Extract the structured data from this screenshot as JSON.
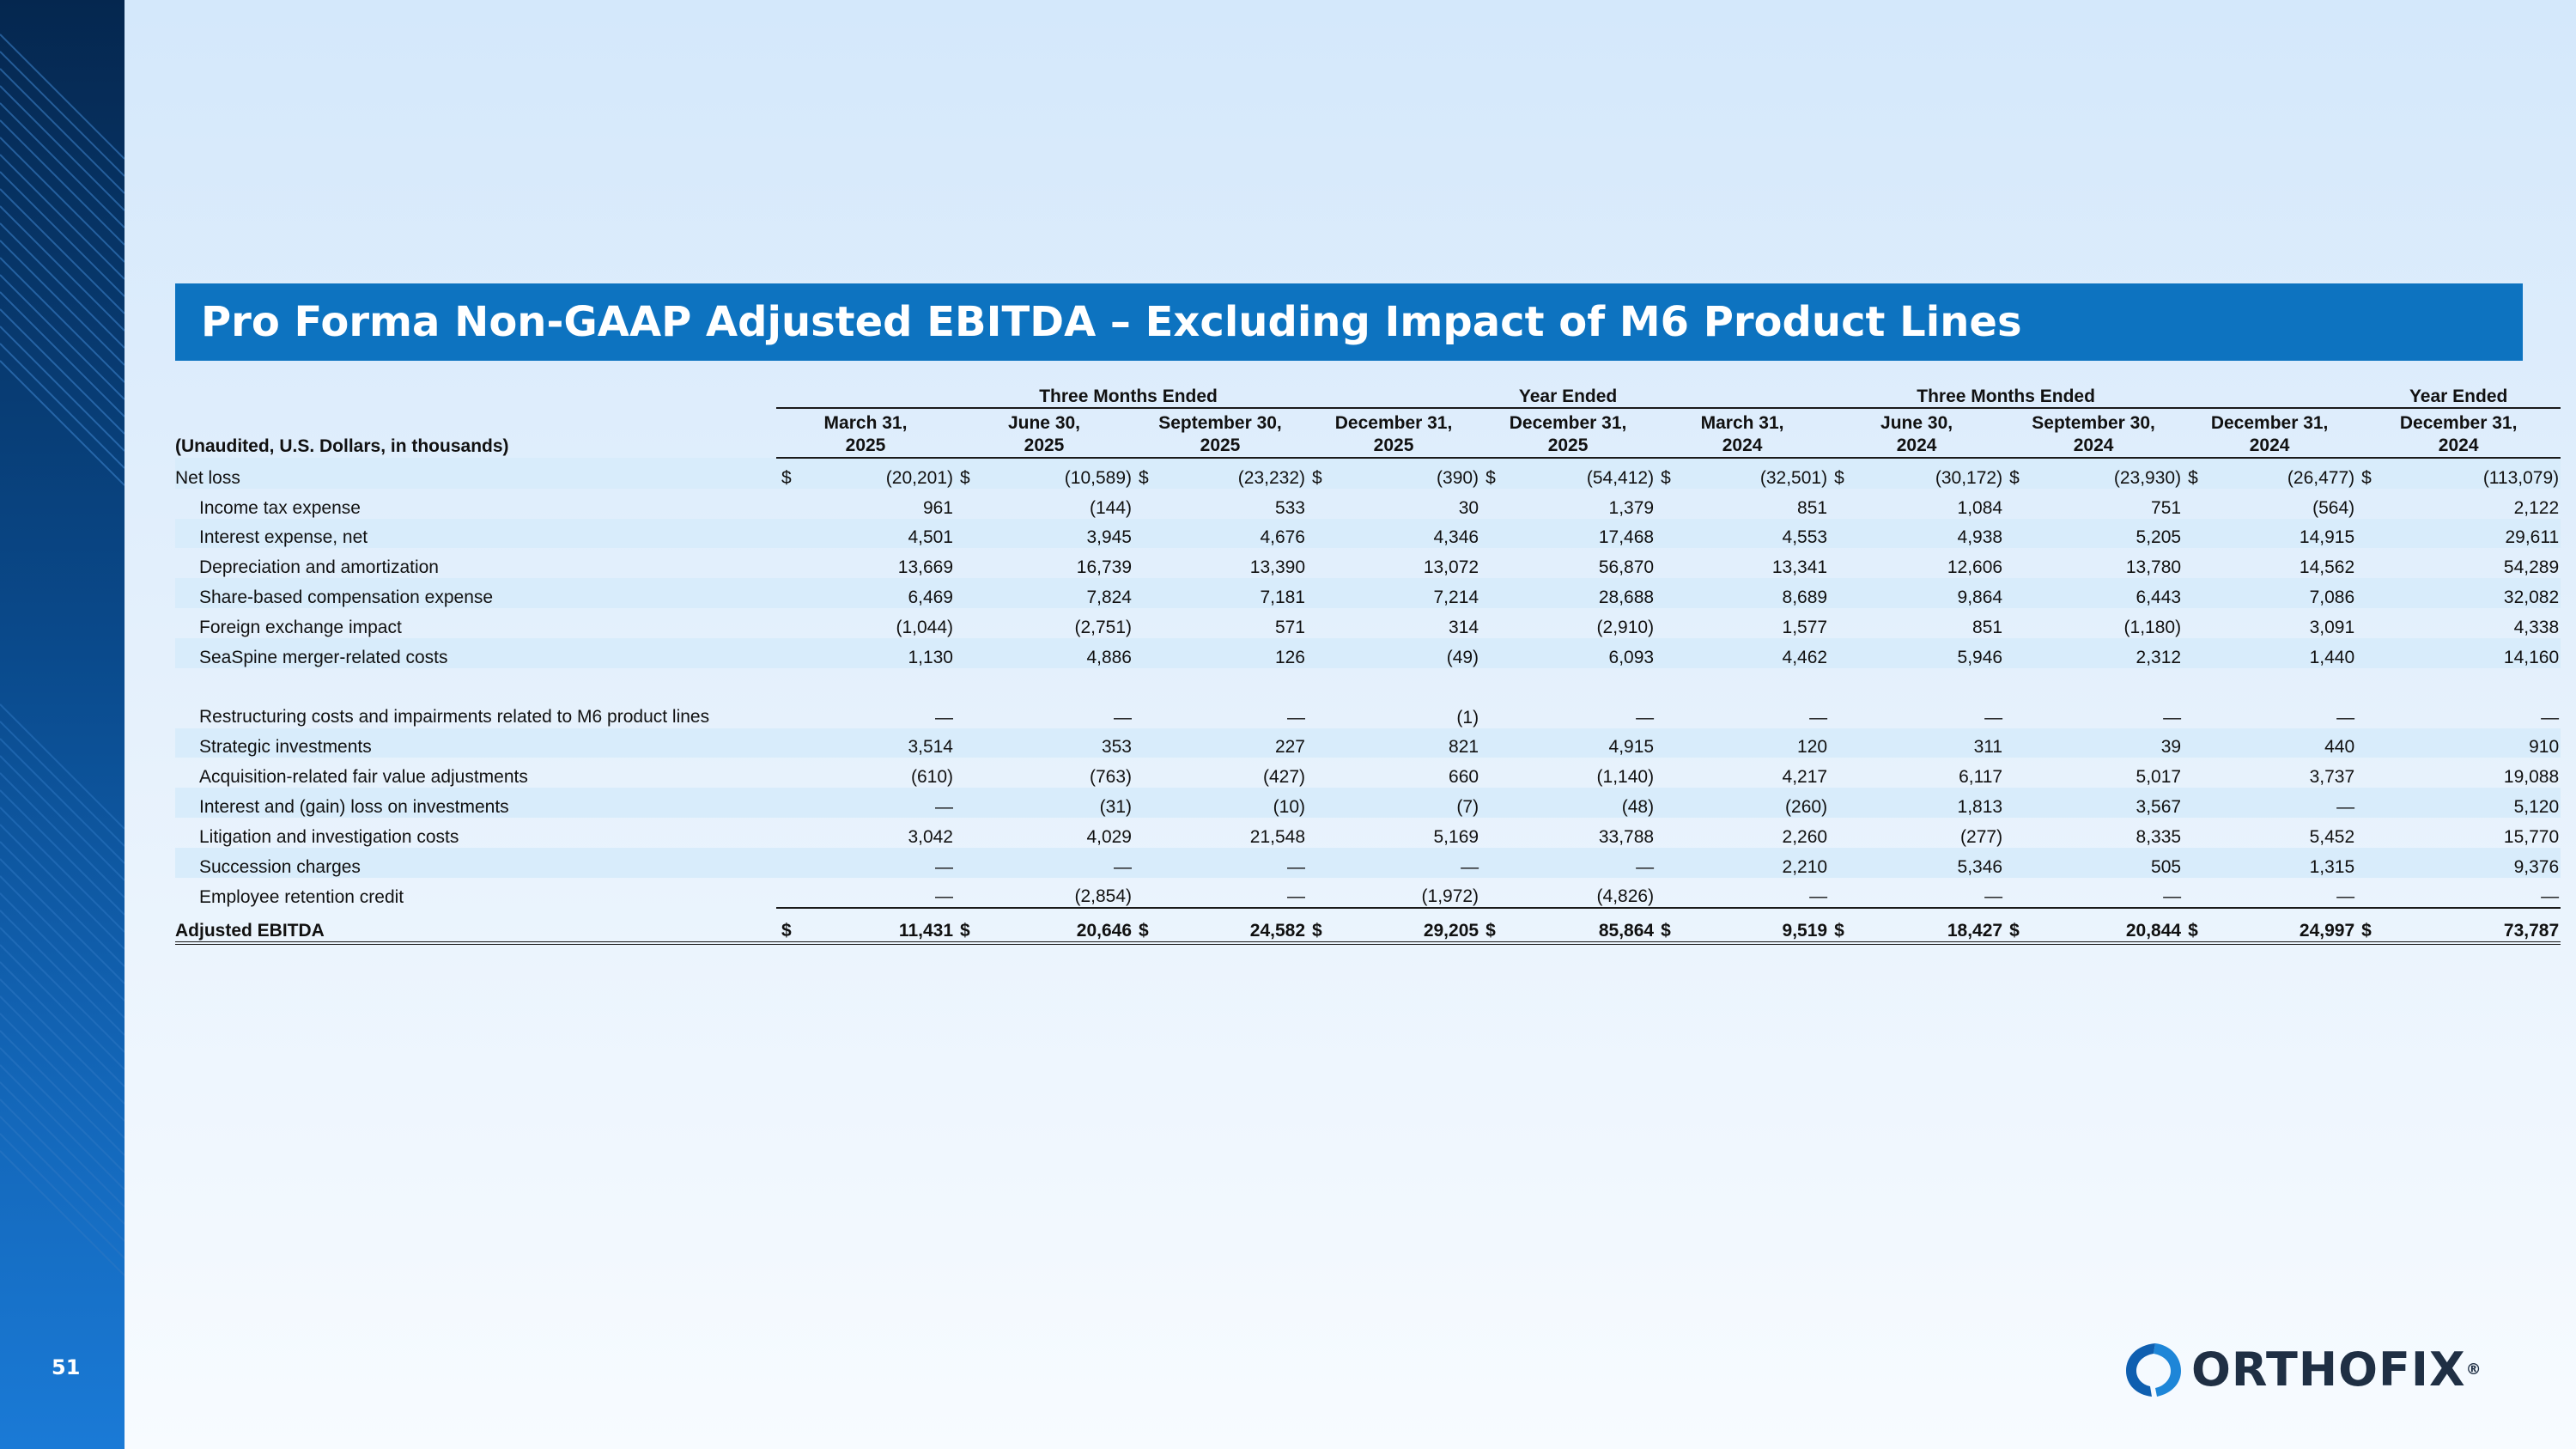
{
  "slide": {
    "page_number": "51",
    "title": "Pro Forma Non-GAAP Adjusted EBITDA – Excluding Impact of M6 Product Lines",
    "logo_text": "ORTHOFIX",
    "logo_mark": "®"
  },
  "table": {
    "group_headers": [
      "Three Months Ended",
      "Year Ended",
      "Three Months Ended",
      "Year Ended"
    ],
    "unit_label": "(Unaudited, U.S. Dollars, in thousands)",
    "columns": [
      {
        "line1": "March 31,",
        "line2": "2025"
      },
      {
        "line1": "June 30,",
        "line2": "2025"
      },
      {
        "line1": "September 30,",
        "line2": "2025"
      },
      {
        "line1": "December 31,",
        "line2": "2025"
      },
      {
        "line1": "December 31,",
        "line2": "2025"
      },
      {
        "line1": "March 31,",
        "line2": "2024"
      },
      {
        "line1": "June 30,",
        "line2": "2024"
      },
      {
        "line1": "September 30,",
        "line2": "2024"
      },
      {
        "line1": "December 31,",
        "line2": "2024"
      },
      {
        "line1": "December 31,",
        "line2": "2024"
      }
    ],
    "currency_symbol": "$",
    "rows": [
      {
        "label": "Net loss",
        "values": [
          "(20,201)",
          "(10,589)",
          "(23,232)",
          "(390)",
          "(54,412)",
          "(32,501)",
          "(30,172)",
          "(23,930)",
          "(26,477)",
          "(113,079)"
        ]
      },
      {
        "label": "Income tax expense",
        "values": [
          "961",
          "(144)",
          "533",
          "30",
          "1,379",
          "851",
          "1,084",
          "751",
          "(564)",
          "2,122"
        ]
      },
      {
        "label": "Interest expense, net",
        "values": [
          "4,501",
          "3,945",
          "4,676",
          "4,346",
          "17,468",
          "4,553",
          "4,938",
          "5,205",
          "14,915",
          "29,611"
        ]
      },
      {
        "label": "Depreciation and amortization",
        "values": [
          "13,669",
          "16,739",
          "13,390",
          "13,072",
          "56,870",
          "13,341",
          "12,606",
          "13,780",
          "14,562",
          "54,289"
        ]
      },
      {
        "label": "Share-based compensation expense",
        "values": [
          "6,469",
          "7,824",
          "7,181",
          "7,214",
          "28,688",
          "8,689",
          "9,864",
          "6,443",
          "7,086",
          "32,082"
        ]
      },
      {
        "label": "Foreign exchange impact",
        "values": [
          "(1,044)",
          "(2,751)",
          "571",
          "314",
          "(2,910)",
          "1,577",
          "851",
          "(1,180)",
          "3,091",
          "4,338"
        ]
      },
      {
        "label": "SeaSpine merger-related costs",
        "values": [
          "1,130",
          "4,886",
          "126",
          "(49)",
          "6,093",
          "4,462",
          "5,946",
          "2,312",
          "1,440",
          "14,160"
        ]
      },
      {
        "label": "Restructuring costs and impairments related to M6 product lines",
        "values": [
          "—",
          "—",
          "—",
          "(1)",
          "—",
          "—",
          "—",
          "—",
          "—",
          "—"
        ]
      },
      {
        "label": "Strategic investments",
        "values": [
          "3,514",
          "353",
          "227",
          "821",
          "4,915",
          "120",
          "311",
          "39",
          "440",
          "910"
        ]
      },
      {
        "label": "Acquisition-related fair value adjustments",
        "values": [
          "(610)",
          "(763)",
          "(427)",
          "660",
          "(1,140)",
          "4,217",
          "6,117",
          "5,017",
          "3,737",
          "19,088"
        ]
      },
      {
        "label": "Interest and (gain) loss on investments",
        "values": [
          "—",
          "(31)",
          "(10)",
          "(7)",
          "(48)",
          "(260)",
          "1,813",
          "3,567",
          "—",
          "5,120"
        ]
      },
      {
        "label": "Litigation and investigation costs",
        "values": [
          "3,042",
          "4,029",
          "21,548",
          "5,169",
          "33,788",
          "2,260",
          "(277)",
          "8,335",
          "5,452",
          "15,770"
        ]
      },
      {
        "label": "Succession charges",
        "values": [
          "—",
          "—",
          "—",
          "—",
          "—",
          "2,210",
          "5,346",
          "505",
          "1,315",
          "9,376"
        ]
      },
      {
        "label": "Employee retention credit",
        "values": [
          "—",
          "(2,854)",
          "—",
          "(1,972)",
          "(4,826)",
          "—",
          "—",
          "—",
          "—",
          "—"
        ]
      }
    ],
    "total": {
      "label": "Adjusted EBITDA",
      "values": [
        "11,431",
        "20,646",
        "24,582",
        "29,205",
        "85,864",
        "9,519",
        "18,427",
        "20,844",
        "24,997",
        "73,787"
      ]
    }
  },
  "colors": {
    "title_bar": "#0d73c0",
    "band": "#d8ecfb",
    "sidebar": "#0a4a8c"
  }
}
